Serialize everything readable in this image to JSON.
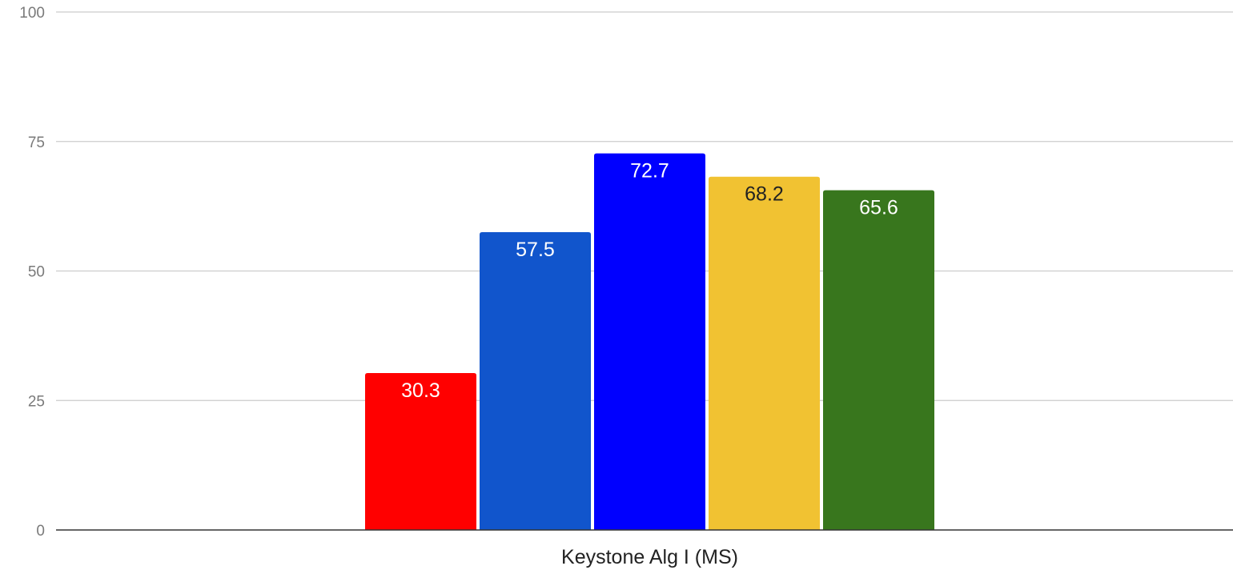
{
  "chart_data": {
    "type": "bar",
    "title": "",
    "xlabel": "",
    "ylabel": "",
    "categories": [
      "Keystone Alg I (MS)"
    ],
    "ylim": [
      0,
      100
    ],
    "yticks": [
      0,
      25,
      50,
      75,
      100
    ],
    "grid": true,
    "legend": "none",
    "series": [
      {
        "values": [
          30.3
        ],
        "color": "#ff0000",
        "label_color": "#ffffff"
      },
      {
        "values": [
          57.5
        ],
        "color": "#1155cc",
        "label_color": "#ffffff"
      },
      {
        "values": [
          72.7
        ],
        "color": "#0000ff",
        "label_color": "#ffffff"
      },
      {
        "values": [
          68.2
        ],
        "color": "#f1c232",
        "label_color": "#222222"
      },
      {
        "values": [
          65.6
        ],
        "color": "#38761d",
        "label_color": "#ffffff"
      }
    ],
    "data_labels": [
      "30.3",
      "57.5",
      "72.7",
      "68.2",
      "65.6"
    ]
  }
}
